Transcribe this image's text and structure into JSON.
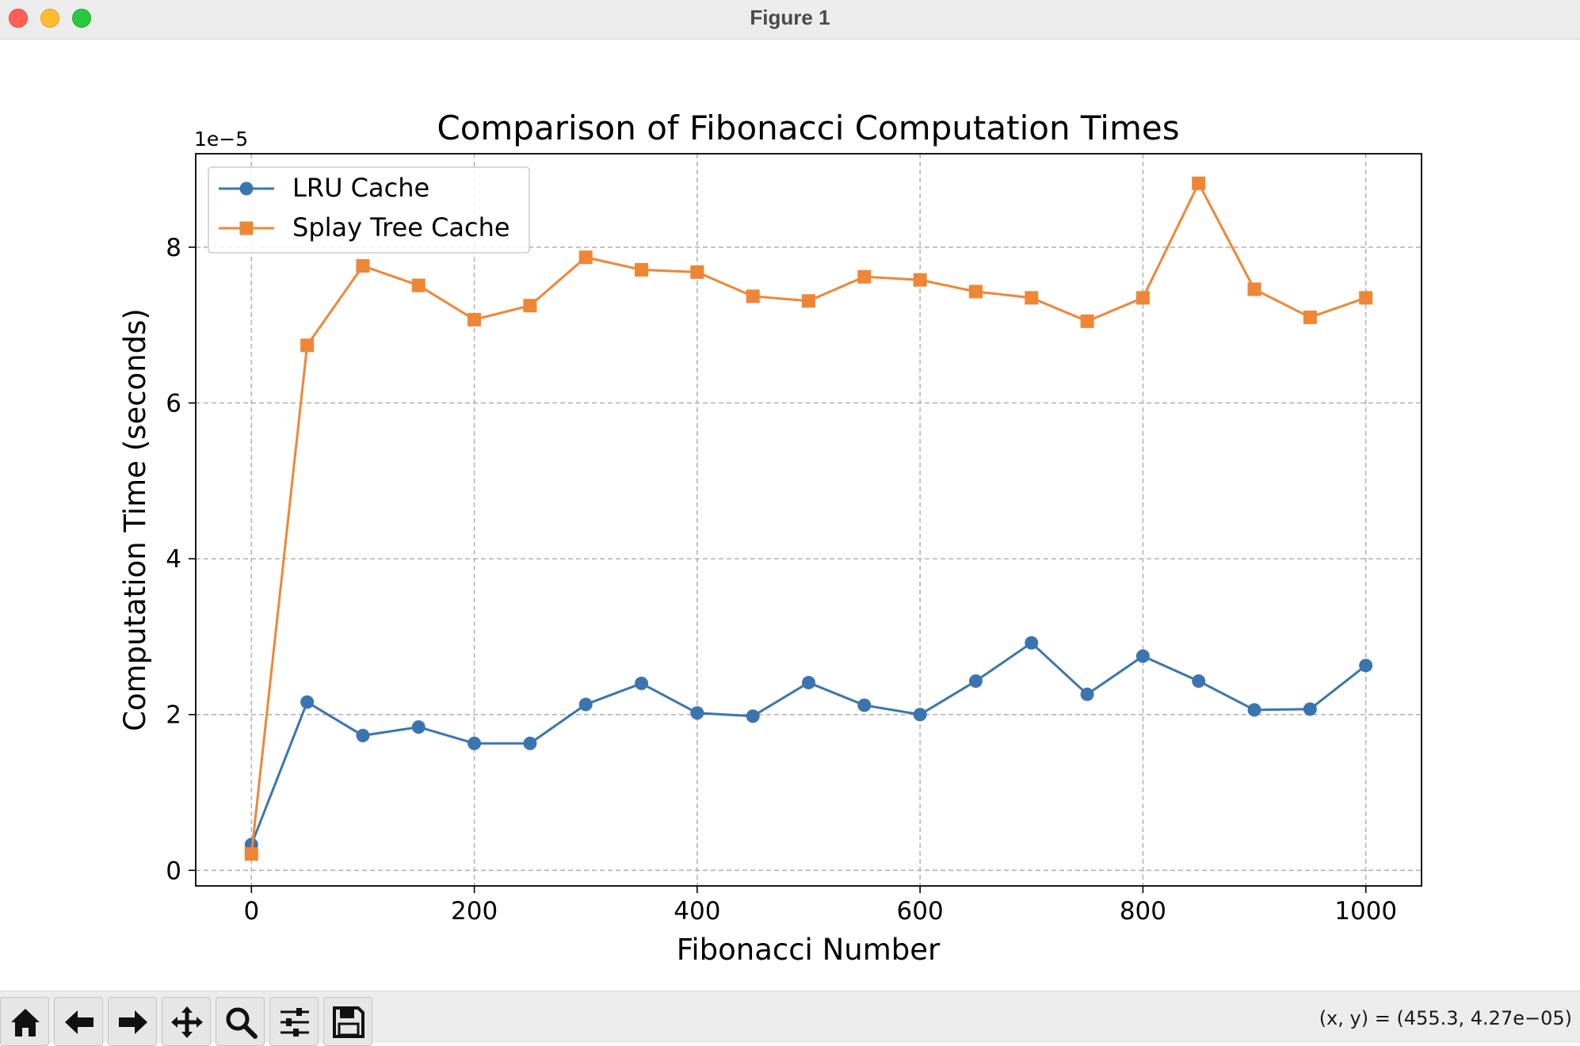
{
  "window": {
    "title": "Figure 1"
  },
  "toolbar": {
    "buttons": [
      {
        "name": "home-button",
        "icon": "home-icon"
      },
      {
        "name": "back-button",
        "icon": "arrow-left-icon"
      },
      {
        "name": "forward-button",
        "icon": "arrow-right-icon"
      },
      {
        "name": "pan-button",
        "icon": "move-icon"
      },
      {
        "name": "zoom-button",
        "icon": "magnifier-icon"
      },
      {
        "name": "configure-subplots-button",
        "icon": "sliders-icon"
      },
      {
        "name": "save-button",
        "icon": "floppy-disk-icon"
      }
    ],
    "coords": "(x, y) = (455.3, 4.27e−05)"
  },
  "chart_data": {
    "type": "line",
    "title": "Comparison of Fibonacci Computation Times",
    "xlabel": "Fibonacci Number",
    "ylabel": "Computation Time (seconds)",
    "y_multiplier_label": "1e−5",
    "xlim": [
      -50,
      1050
    ],
    "ylim": [
      -0.2,
      9.2
    ],
    "xticks": [
      0,
      200,
      400,
      600,
      800,
      1000
    ],
    "xtick_labels": [
      "0",
      "200",
      "400",
      "600",
      "800",
      "1000"
    ],
    "yticks": [
      0,
      2,
      4,
      6,
      8
    ],
    "ytick_labels": [
      "0",
      "2",
      "4",
      "6",
      "8"
    ],
    "grid": true,
    "legend_position": "upper-left",
    "x": [
      0,
      50,
      100,
      150,
      200,
      250,
      300,
      350,
      400,
      450,
      500,
      550,
      600,
      650,
      700,
      750,
      800,
      850,
      900,
      950,
      1000
    ],
    "series": [
      {
        "name": "LRU Cache",
        "marker": "circle",
        "color": "#3a75b0",
        "values": [
          0.33,
          2.16,
          1.73,
          1.84,
          1.63,
          1.63,
          2.13,
          2.4,
          2.02,
          1.98,
          2.41,
          2.12,
          2.0,
          2.43,
          2.92,
          2.26,
          2.75,
          2.43,
          2.06,
          2.07,
          2.63
        ]
      },
      {
        "name": "Splay Tree Cache",
        "marker": "square",
        "color": "#ef8636",
        "values": [
          0.21,
          6.74,
          7.76,
          7.51,
          7.07,
          7.25,
          7.87,
          7.71,
          7.68,
          7.37,
          7.31,
          7.62,
          7.58,
          7.43,
          7.35,
          7.05,
          7.35,
          8.82,
          7.46,
          7.1,
          7.35
        ]
      }
    ]
  }
}
